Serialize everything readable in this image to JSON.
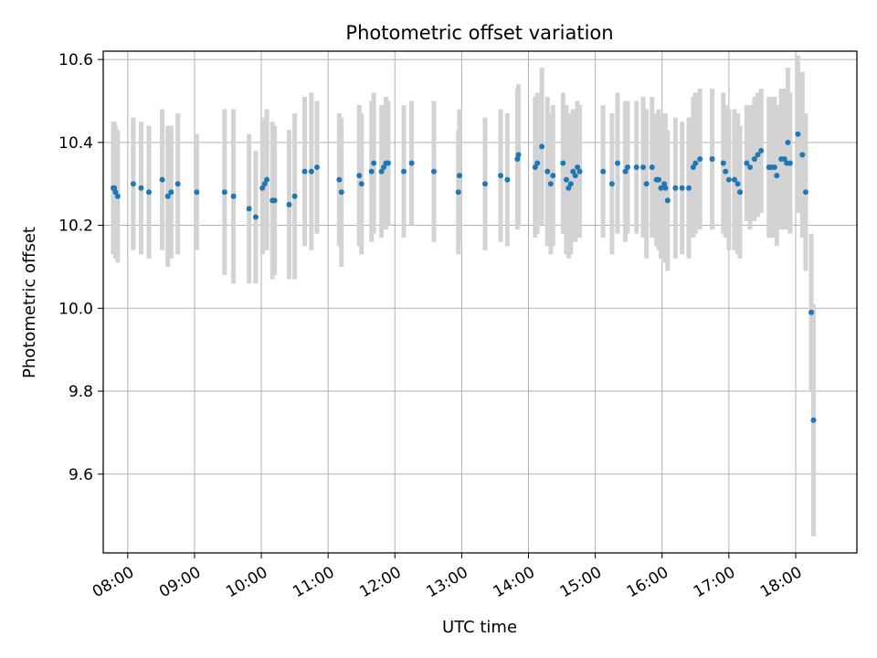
{
  "chart_data": {
    "type": "scatter",
    "title": "Photometric offset variation",
    "xlabel": "UTC time",
    "ylabel": "Photometric offset",
    "xlim": [
      "07:38",
      "18:55"
    ],
    "ylim": [
      9.41,
      10.62
    ],
    "grid": true,
    "x_ticks": [
      "08:00",
      "09:00",
      "10:00",
      "11:00",
      "12:00",
      "13:00",
      "14:00",
      "15:00",
      "16:00",
      "17:00",
      "18:00"
    ],
    "y_ticks": [
      "9.6",
      "9.8",
      "10.0",
      "10.2",
      "10.4",
      "10.6"
    ],
    "colors": {
      "point": "#1f77b4",
      "errorbar": "#d3d3d3",
      "grid": "#b0b0b0"
    },
    "series": [
      {
        "points": [
          [
            "07:47",
            10.29,
            0.16
          ],
          [
            "07:48",
            10.29,
            0.16
          ],
          [
            "07:49",
            10.28,
            0.16
          ],
          [
            "07:51",
            10.27,
            0.16
          ],
          [
            "08:05",
            10.3,
            0.16
          ],
          [
            "08:12",
            10.29,
            0.16
          ],
          [
            "08:19",
            10.28,
            0.16
          ],
          [
            "08:31",
            10.31,
            0.17
          ],
          [
            "08:36",
            10.27,
            0.17
          ],
          [
            "08:39",
            10.28,
            0.16
          ],
          [
            "08:45",
            10.3,
            0.17
          ],
          [
            "09:02",
            10.28,
            0.14
          ],
          [
            "09:27",
            10.28,
            0.2
          ],
          [
            "09:35",
            10.27,
            0.21
          ],
          [
            "09:49",
            10.24,
            0.18
          ],
          [
            "09:55",
            10.22,
            0.16
          ],
          [
            "10:01",
            10.29,
            0.16
          ],
          [
            "10:03",
            10.3,
            0.16
          ],
          [
            "10:05",
            10.31,
            0.17
          ],
          [
            "10:10",
            10.26,
            0.19
          ],
          [
            "10:12",
            10.26,
            0.18
          ],
          [
            "10:25",
            10.25,
            0.18
          ],
          [
            "10:30",
            10.27,
            0.2
          ],
          [
            "10:39",
            10.33,
            0.18
          ],
          [
            "10:45",
            10.33,
            0.19
          ],
          [
            "10:50",
            10.34,
            0.16
          ],
          [
            "11:10",
            10.31,
            0.16
          ],
          [
            "11:12",
            10.28,
            0.18
          ],
          [
            "11:28",
            10.32,
            0.17
          ],
          [
            "11:30",
            10.3,
            0.17
          ],
          [
            "11:39",
            10.33,
            0.17
          ],
          [
            "11:41",
            10.35,
            0.17
          ],
          [
            "11:48",
            10.33,
            0.16
          ],
          [
            "11:50",
            10.34,
            0.15
          ],
          [
            "11:52",
            10.35,
            0.16
          ],
          [
            "11:54",
            10.35,
            0.15
          ],
          [
            "12:08",
            10.33,
            0.16
          ],
          [
            "12:15",
            10.35,
            0.15
          ],
          [
            "12:35",
            10.33,
            0.17
          ],
          [
            "12:57",
            10.28,
            0.15
          ],
          [
            "12:58",
            10.32,
            0.16
          ],
          [
            "13:21",
            10.3,
            0.16
          ],
          [
            "13:35",
            10.32,
            0.16
          ],
          [
            "13:41",
            10.31,
            0.16
          ],
          [
            "13:50",
            10.36,
            0.17
          ],
          [
            "13:51",
            10.37,
            0.17
          ],
          [
            "14:06",
            10.34,
            0.17
          ],
          [
            "14:08",
            10.35,
            0.17
          ],
          [
            "14:12",
            10.39,
            0.19
          ],
          [
            "14:17",
            10.33,
            0.18
          ],
          [
            "14:20",
            10.3,
            0.17
          ],
          [
            "14:22",
            10.32,
            0.17
          ],
          [
            "14:31",
            10.35,
            0.17
          ],
          [
            "14:34",
            10.31,
            0.18
          ],
          [
            "14:36",
            10.29,
            0.17
          ],
          [
            "14:38",
            10.3,
            0.17
          ],
          [
            "14:40",
            10.33,
            0.15
          ],
          [
            "14:42",
            10.32,
            0.16
          ],
          [
            "14:44",
            10.34,
            0.16
          ],
          [
            "14:46",
            10.33,
            0.16
          ],
          [
            "15:07",
            10.33,
            0.16
          ],
          [
            "15:15",
            10.3,
            0.17
          ],
          [
            "15:20",
            10.35,
            0.17
          ],
          [
            "15:27",
            10.33,
            0.17
          ],
          [
            "15:29",
            10.34,
            0.16
          ],
          [
            "15:37",
            10.34,
            0.16
          ],
          [
            "15:43",
            10.34,
            0.17
          ],
          [
            "15:46",
            10.3,
            0.18
          ],
          [
            "15:51",
            10.34,
            0.17
          ],
          [
            "15:55",
            10.31,
            0.16
          ],
          [
            "15:57",
            10.31,
            0.17
          ],
          [
            "15:59",
            10.29,
            0.17
          ],
          [
            "16:02",
            10.3,
            0.17
          ],
          [
            "16:03",
            10.29,
            0.18
          ],
          [
            "16:05",
            10.26,
            0.17
          ],
          [
            "16:12",
            10.29,
            0.17
          ],
          [
            "16:18",
            10.29,
            0.16
          ],
          [
            "16:24",
            10.29,
            0.17
          ],
          [
            "16:28",
            10.34,
            0.17
          ],
          [
            "16:30",
            10.35,
            0.17
          ],
          [
            "16:34",
            10.36,
            0.17
          ],
          [
            "16:45",
            10.36,
            0.17
          ],
          [
            "16:55",
            10.35,
            0.17
          ],
          [
            "16:57",
            10.33,
            0.16
          ],
          [
            "17:00",
            10.31,
            0.17
          ],
          [
            "17:05",
            10.31,
            0.17
          ],
          [
            "17:08",
            10.3,
            0.17
          ],
          [
            "17:10",
            10.28,
            0.16
          ],
          [
            "17:16",
            10.35,
            0.14
          ],
          [
            "17:19",
            10.34,
            0.15
          ],
          [
            "17:23",
            10.36,
            0.15
          ],
          [
            "17:26",
            10.37,
            0.15
          ],
          [
            "17:29",
            10.38,
            0.15
          ],
          [
            "17:36",
            10.34,
            0.17
          ],
          [
            "17:38",
            10.34,
            0.17
          ],
          [
            "17:41",
            10.34,
            0.17
          ],
          [
            "17:43",
            10.32,
            0.17
          ],
          [
            "17:47",
            10.36,
            0.17
          ],
          [
            "17:50",
            10.36,
            0.17
          ],
          [
            "17:52",
            10.35,
            0.16
          ],
          [
            "17:53",
            10.4,
            0.18
          ],
          [
            "17:55",
            10.35,
            0.17
          ],
          [
            "18:02",
            10.42,
            0.19
          ],
          [
            "18:06",
            10.37,
            0.2
          ],
          [
            "18:09",
            10.28,
            0.19
          ],
          [
            "18:14",
            9.99,
            0.19
          ],
          [
            "18:16",
            9.73,
            0.28
          ]
        ]
      }
    ]
  }
}
